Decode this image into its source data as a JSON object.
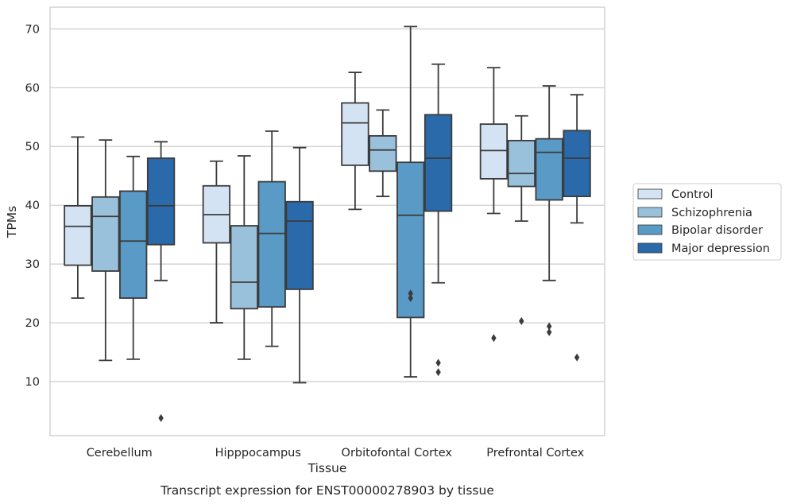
{
  "chart_data": {
    "type": "box",
    "caption": "Transcript expression for ENST00000278903 by tissue",
    "xlabel": "Tissue",
    "ylabel": "TPMs",
    "ylim": [
      0.8,
      73.7
    ],
    "yticks": [
      10,
      20,
      30,
      40,
      50,
      60,
      70
    ],
    "grid": true,
    "legend_position": "right",
    "categories": [
      "Cerebellum",
      "Hipppocampus",
      "Orbitofontal Cortex",
      "Prefrontal Cortex"
    ],
    "series": [
      {
        "name": "Control",
        "color": "#d4e3f3",
        "boxes": [
          {
            "whisker_low": 24.2,
            "q1": 29.8,
            "median": 36.4,
            "q3": 39.9,
            "whisker_high": 51.6,
            "outliers": []
          },
          {
            "whisker_low": 20.0,
            "q1": 33.6,
            "median": 38.4,
            "q3": 43.3,
            "whisker_high": 47.5,
            "outliers": []
          },
          {
            "whisker_low": 39.3,
            "q1": 46.8,
            "median": 54.0,
            "q3": 57.4,
            "whisker_high": 62.6,
            "outliers": []
          },
          {
            "whisker_low": 38.6,
            "q1": 44.5,
            "median": 49.3,
            "q3": 53.8,
            "whisker_high": 63.4,
            "outliers": [
              17.4
            ]
          }
        ]
      },
      {
        "name": "Schizophrenia",
        "color": "#9ac1dc",
        "boxes": [
          {
            "whisker_low": 13.6,
            "q1": 28.8,
            "median": 38.1,
            "q3": 41.4,
            "whisker_high": 51.1,
            "outliers": []
          },
          {
            "whisker_low": 13.8,
            "q1": 22.4,
            "median": 26.9,
            "q3": 36.5,
            "whisker_high": 48.4,
            "outliers": []
          },
          {
            "whisker_low": 41.5,
            "q1": 45.8,
            "median": 49.4,
            "q3": 51.8,
            "whisker_high": 56.2,
            "outliers": []
          },
          {
            "whisker_low": 37.3,
            "q1": 43.2,
            "median": 45.4,
            "q3": 51.0,
            "whisker_high": 55.2,
            "outliers": [
              20.3
            ]
          }
        ]
      },
      {
        "name": "Bipolar disorder",
        "color": "#5a9ac6",
        "boxes": [
          {
            "whisker_low": 13.8,
            "q1": 24.2,
            "median": 33.9,
            "q3": 42.4,
            "whisker_high": 48.3,
            "outliers": []
          },
          {
            "whisker_low": 16.0,
            "q1": 22.7,
            "median": 35.2,
            "q3": 44.0,
            "whisker_high": 52.6,
            "outliers": []
          },
          {
            "whisker_low": 10.8,
            "q1": 20.9,
            "median": 38.3,
            "q3": 47.3,
            "whisker_high": 70.4,
            "outliers": [
              24.2,
              25.0
            ]
          },
          {
            "whisker_low": 27.2,
            "q1": 40.9,
            "median": 49.0,
            "q3": 51.3,
            "whisker_high": 60.3,
            "outliers": [
              18.4,
              19.4
            ]
          }
        ]
      },
      {
        "name": "Major depression",
        "color": "#2a69aa",
        "boxes": [
          {
            "whisker_low": 27.2,
            "q1": 33.3,
            "median": 39.9,
            "q3": 48.0,
            "whisker_high": 50.8,
            "outliers": [
              3.8
            ]
          },
          {
            "whisker_low": 9.8,
            "q1": 25.7,
            "median": 37.3,
            "q3": 40.6,
            "whisker_high": 49.8,
            "outliers": []
          },
          {
            "whisker_low": 26.8,
            "q1": 39.0,
            "median": 48.0,
            "q3": 55.4,
            "whisker_high": 64.0,
            "outliers": [
              11.6,
              13.2
            ]
          },
          {
            "whisker_low": 37.0,
            "q1": 41.5,
            "median": 48.0,
            "q3": 52.7,
            "whisker_high": 58.8,
            "outliers": [
              14.1
            ]
          }
        ]
      }
    ]
  }
}
